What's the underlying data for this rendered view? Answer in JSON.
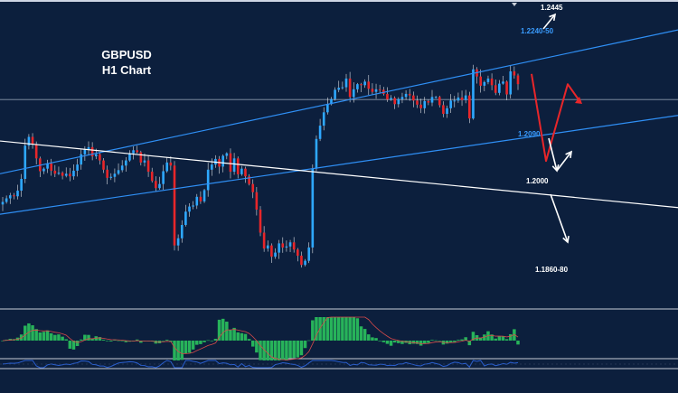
{
  "chart": {
    "symbol": "GBPUSD",
    "timeframe": "H1 Chart"
  },
  "chart_data": {
    "type": "candlestick",
    "symbol": "GBPUSD",
    "timeframe": "H1",
    "price_axis_visible": false,
    "grid": false,
    "candle_colors": {
      "bull": "#2ea8ff",
      "bear": "#e8262a",
      "wick": "#ffffff"
    },
    "close_series": [
      1.1985,
      1.1992,
      1.1998,
      1.1996,
      1.2007,
      1.203,
      1.2095,
      1.2112,
      1.2098,
      1.207,
      1.2045,
      1.205,
      1.206,
      1.2046,
      1.204,
      1.2042,
      1.2036,
      1.204,
      1.2035,
      1.2046,
      1.2058,
      1.2078,
      1.2088,
      1.2092,
      1.2074,
      1.2078,
      1.2066,
      1.2048,
      1.2032,
      1.2034,
      1.204,
      1.2047,
      1.2056,
      1.2066,
      1.208,
      1.2086,
      1.2082,
      1.2062,
      1.2066,
      1.2044,
      1.2026,
      1.2012,
      1.202,
      1.2045,
      1.2062,
      1.2056,
      1.19,
      1.1914,
      1.194,
      1.1966,
      1.1976,
      1.1978,
      1.1995,
      1.1986,
      1.2008,
      1.2048,
      1.2058,
      1.2069,
      1.2054,
      1.2075,
      1.208,
      1.2044,
      1.207,
      1.2039,
      1.205,
      1.2035,
      1.202,
      1.2004,
      1.197,
      1.1925,
      1.1894,
      1.19,
      1.1878,
      1.1886,
      1.1904,
      1.1896,
      1.1898,
      1.1906,
      1.1892,
      1.188,
      1.1862,
      1.187,
      1.1896,
      1.205,
      1.2108,
      1.2134,
      1.216,
      1.2176,
      1.2186,
      1.2204,
      1.2208,
      1.2209,
      1.2226,
      1.219,
      1.2205,
      1.2215,
      1.2213,
      1.222,
      1.2206,
      1.22,
      1.2205,
      1.2204,
      1.2196,
      1.2185,
      1.2188,
      1.2176,
      1.2186,
      1.219,
      1.2196,
      1.2193,
      1.2183,
      1.2175,
      1.2168,
      1.2182,
      1.2179,
      1.219,
      1.219,
      1.2174,
      1.2157,
      1.2168,
      1.2183,
      1.2183,
      1.2189,
      1.2184,
      1.2193,
      1.2148,
      1.2244,
      1.223,
      1.2212,
      1.2219,
      1.2226,
      1.2213,
      1.2198,
      1.2216,
      1.222,
      1.2195,
      1.224,
      1.2232,
      1.2215
    ],
    "horizontal_level": 1.2185,
    "channel_lines": [
      {
        "name": "upper channel",
        "from": [
          0,
          1.204
        ],
        "to": [
          750,
          1.2321
        ],
        "color": "#2f8ff5"
      },
      {
        "name": "lower channel",
        "from": [
          0,
          1.1961
        ],
        "to": [
          750,
          1.2154
        ],
        "color": "#2f8ff5"
      },
      {
        "name": "descending trendline",
        "from": [
          0,
          1.2104
        ],
        "to": [
          750,
          1.1974
        ],
        "color": "#ffffff"
      }
    ],
    "annotations": [
      {
        "text": "1.2445",
        "color": "#ffffff"
      },
      {
        "text": "1.2240-50",
        "color": "#3a9cff"
      },
      {
        "text": "1.2090",
        "color": "#3a9cff"
      },
      {
        "text": "1.2000",
        "color": "#ffffff"
      },
      {
        "text": "1.1860-80",
        "color": "#ffffff"
      }
    ],
    "projection": {
      "color": "#e8262a",
      "path": [
        1.2235,
        1.2065,
        1.2215,
        1.218
      ]
    },
    "scenario_arrows": [
      {
        "direction": "up",
        "target": "1.2445",
        "color": "#ffffff"
      },
      {
        "direction": "down-then-up",
        "target": "1.2000",
        "color": "#ffffff"
      },
      {
        "direction": "down",
        "target": "1.1860-80",
        "color": "#ffffff"
      }
    ],
    "indicators": [
      {
        "name": "MACD histogram",
        "pane": "middle",
        "color": "#27b35a"
      },
      {
        "name": "oscillator",
        "pane": "bottom",
        "color": "#2a5fd0"
      }
    ]
  }
}
